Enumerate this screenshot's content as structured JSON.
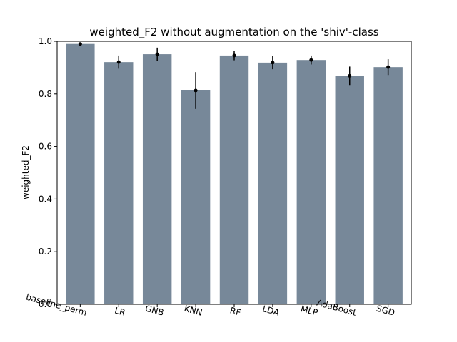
{
  "chart_data": {
    "type": "bar",
    "title": "weighted_F2 without augmentation on the 'shiv'-class",
    "xlabel": "",
    "ylabel": "weighted_F2",
    "ylim": [
      0.0,
      1.0
    ],
    "yticks": [
      "0.0",
      "0.2",
      "0.4",
      "0.6",
      "0.8",
      "1.0"
    ],
    "categories": [
      "baseline_perm",
      "LR",
      "GNB",
      "KNN",
      "RF",
      "LDA",
      "MLP",
      "AdaBoost",
      "SGD"
    ],
    "values": [
      0.99,
      0.921,
      0.951,
      0.813,
      0.946,
      0.919,
      0.929,
      0.869,
      0.902
    ],
    "errors": [
      0.004,
      0.025,
      0.025,
      0.07,
      0.018,
      0.025,
      0.017,
      0.035,
      0.03
    ],
    "bar_color": "#778899",
    "error_color": "#000000",
    "grid": false,
    "legend": "none"
  }
}
